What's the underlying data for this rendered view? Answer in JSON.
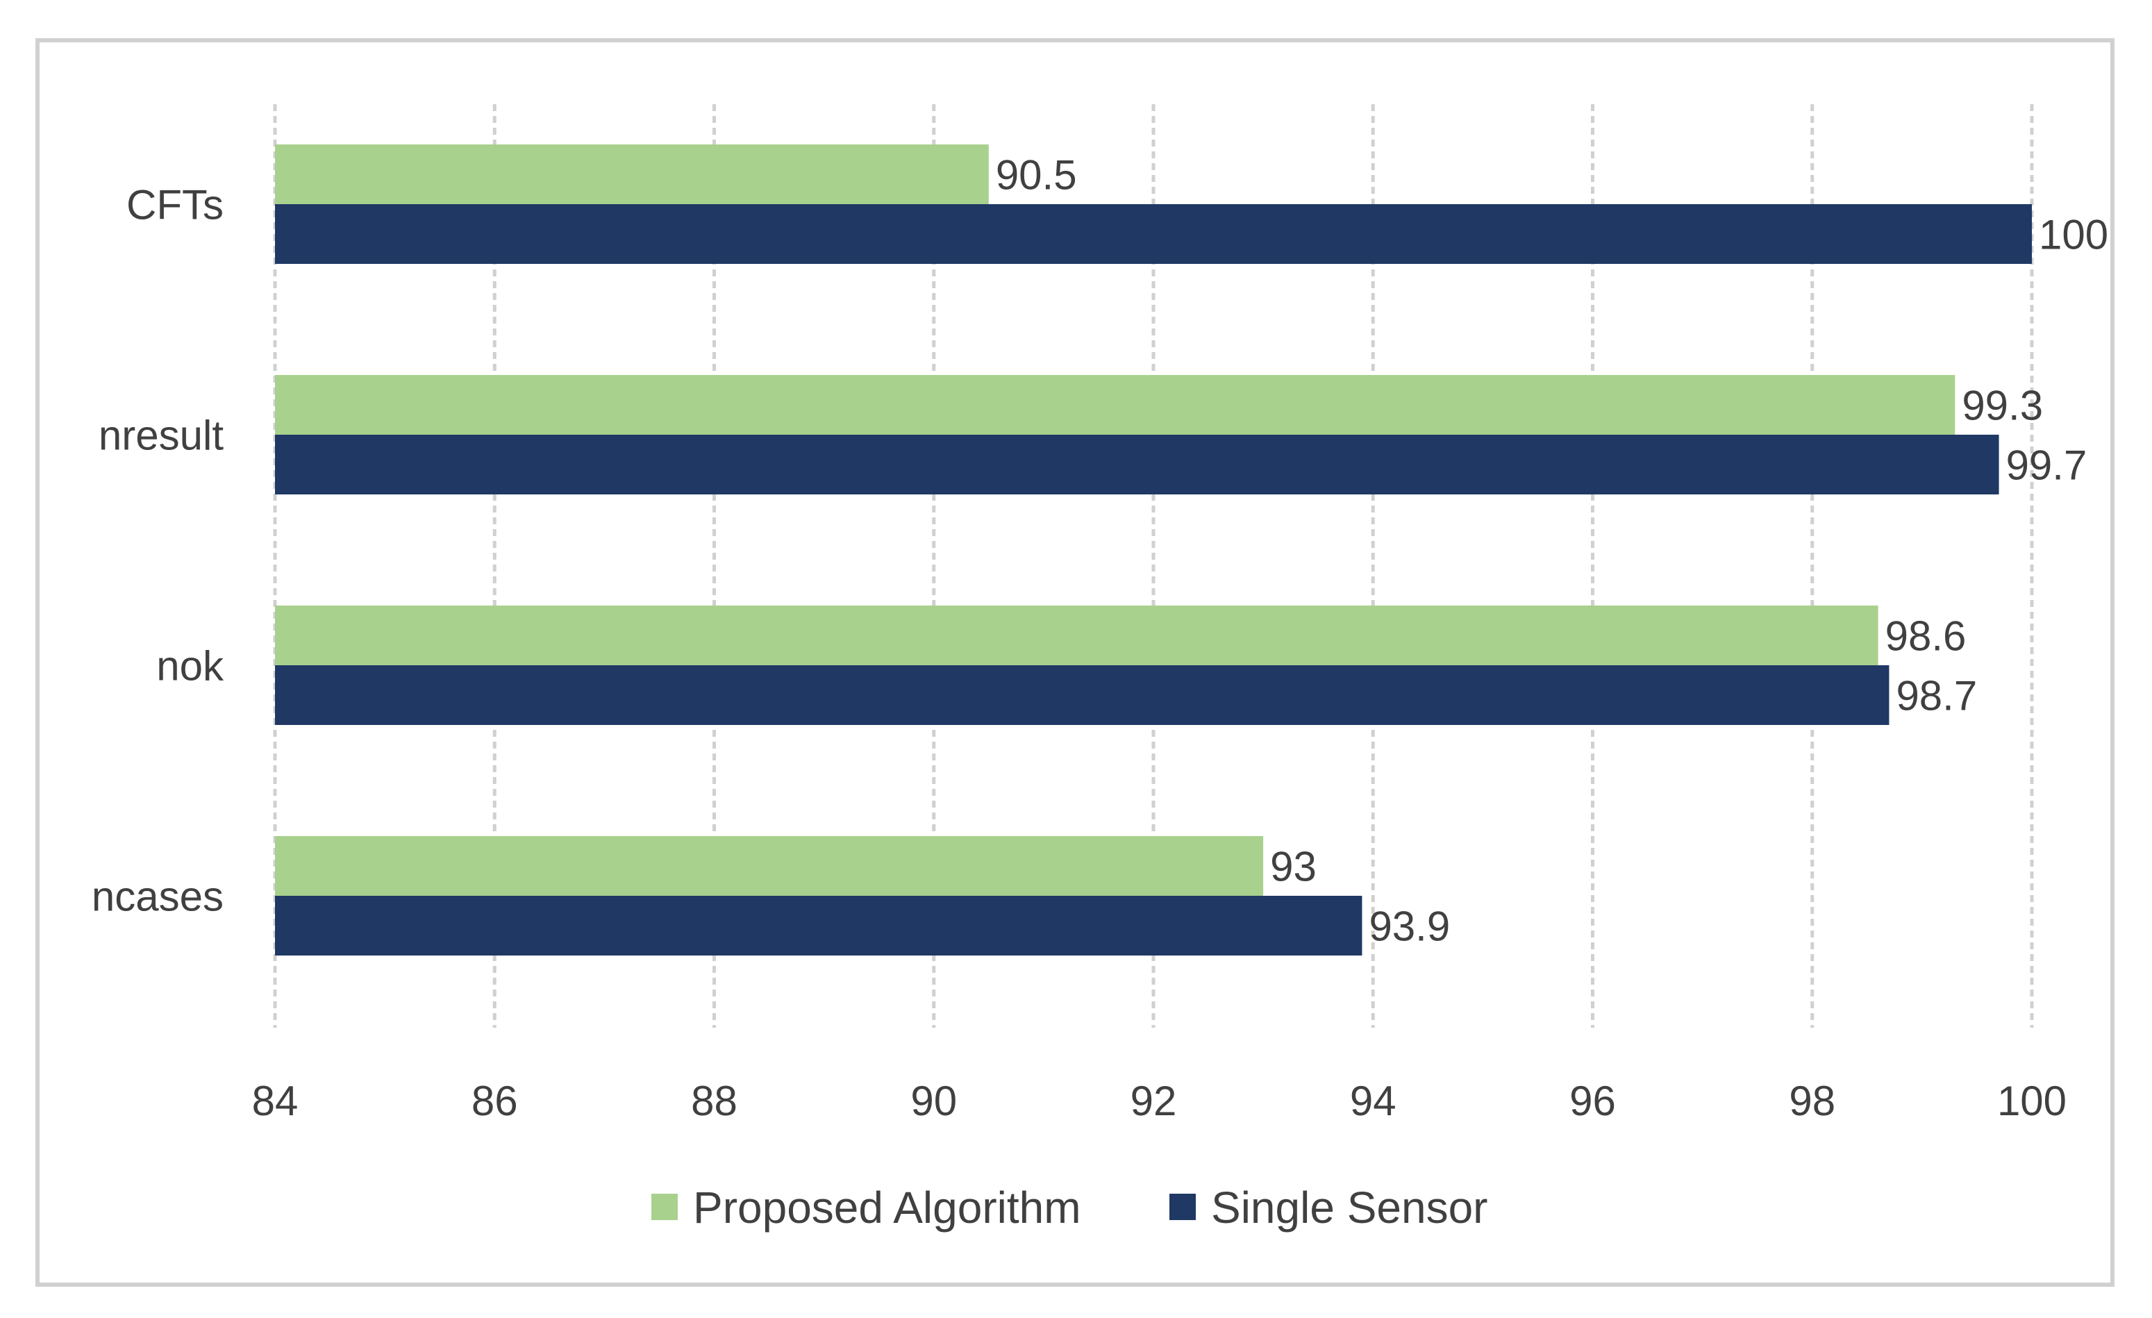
{
  "chart_data": {
    "type": "bar",
    "orientation": "horizontal",
    "categories": [
      "CFTs",
      "nresult",
      "nok",
      "ncases"
    ],
    "series": [
      {
        "name": "Proposed Algorithm",
        "values": [
          90.5,
          99.3,
          98.6,
          93
        ],
        "labels": [
          "90.5",
          "99.3",
          "98.6",
          "93"
        ],
        "color": "#a9d18e"
      },
      {
        "name": "Single Sensor",
        "values": [
          100,
          99.7,
          98.7,
          93.9
        ],
        "labels": [
          "100",
          "99.7",
          "98.7",
          "93.9"
        ],
        "color": "#1f3864"
      }
    ],
    "title": "",
    "xlabel": "",
    "ylabel": "",
    "xlim": [
      84,
      100
    ],
    "x_ticks": [
      84,
      86,
      88,
      90,
      92,
      94,
      96,
      98,
      100
    ],
    "x_tick_labels": [
      "84",
      "86",
      "88",
      "90",
      "92",
      "94",
      "96",
      "98",
      "100"
    ],
    "grid": "vertical-dashed",
    "legend_position": "bottom",
    "data_labels": true
  }
}
